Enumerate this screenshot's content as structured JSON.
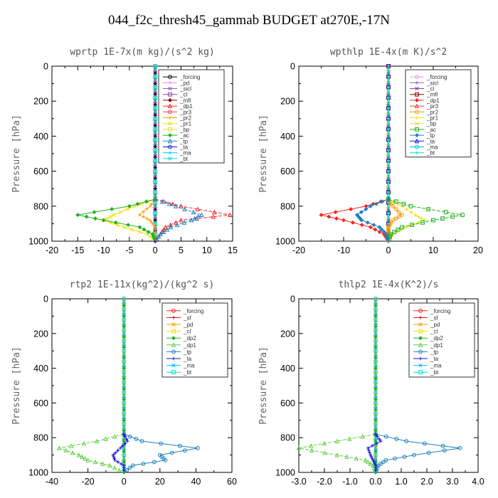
{
  "page_title": "044_f2c_thresh45_gammab  BUDGET at270E,-17N",
  "chart_data": [
    {
      "type": "line",
      "title": "wprtp   1E-7x(m kg)/(s^2 kg)",
      "ylabel": "Pressure [hPa]",
      "xlim": [
        -20,
        15
      ],
      "ylim": [
        1000,
        0
      ],
      "x_ticks": [
        "-20",
        "-15",
        "-10",
        "-5",
        "0",
        "5",
        "10",
        "15"
      ],
      "y_ticks": [
        "0",
        "200",
        "400",
        "600",
        "800",
        "1000"
      ],
      "legend_position": "top-right",
      "pressure": [
        760,
        800,
        850,
        880,
        920,
        960,
        1000
      ],
      "series": [
        {
          "name": "_forcing",
          "color": "#000000",
          "values": [
            0,
            0,
            0,
            0,
            0,
            0,
            0
          ]
        },
        {
          "name": "_pd",
          "color": "#e090e0",
          "values": [
            0,
            0,
            0,
            0,
            0,
            0,
            0
          ]
        },
        {
          "name": "_sicl",
          "color": "#8a60c0",
          "values": [
            0,
            0,
            0,
            0,
            0,
            0,
            0
          ]
        },
        {
          "name": "_cl",
          "color": "#9040a0",
          "values": [
            0,
            0,
            0,
            0,
            0,
            0,
            0
          ]
        },
        {
          "name": "_mfl",
          "color": "#800000",
          "values": [
            0,
            0,
            0,
            0,
            0,
            0,
            0
          ]
        },
        {
          "name": "_dp1",
          "color": "#ff2020",
          "values": [
            0,
            5,
            14.5,
            5,
            2,
            1,
            0
          ]
        },
        {
          "name": "_pr3",
          "color": "#e04040",
          "values": [
            0,
            0,
            0,
            0,
            0,
            0,
            0
          ]
        },
        {
          "name": "_pr2",
          "color": "#ff9900",
          "values": [
            0,
            -1,
            -3,
            -1,
            0,
            0,
            0
          ]
        },
        {
          "name": "_pr1",
          "color": "#f0e000",
          "values": [
            0,
            -4,
            -8,
            -10,
            -6,
            -1.5,
            0
          ]
        },
        {
          "name": "_bp",
          "color": "#e0e040",
          "values": [
            0,
            0,
            0,
            0,
            0,
            0,
            0
          ]
        },
        {
          "name": "_ac",
          "color": "#20b020",
          "values": [
            0,
            -5,
            -15,
            -10,
            -3,
            -0.5,
            0
          ]
        },
        {
          "name": "_tp",
          "color": "#2080c0",
          "values": [
            0,
            4,
            9,
            7,
            3,
            1,
            0
          ]
        },
        {
          "name": "_ta",
          "color": "#1010e0",
          "values": [
            0,
            0,
            0,
            0,
            0,
            0,
            0
          ]
        },
        {
          "name": "_ma",
          "color": "#00c0e0",
          "values": [
            0,
            0,
            0,
            0,
            0,
            0,
            0
          ]
        },
        {
          "name": "_bt",
          "color": "#00e0e0",
          "values": [
            0,
            0,
            0,
            0,
            0,
            0,
            0
          ]
        }
      ]
    },
    {
      "type": "line",
      "title": "wpthlp   1E-4x(m K)/s^2",
      "ylabel": "Pressure [hPa]",
      "xlim": [
        -20,
        20
      ],
      "ylim": [
        1000,
        0
      ],
      "x_ticks": [
        "-20",
        "-10",
        "0",
        "10",
        "20"
      ],
      "y_ticks": [
        "0",
        "200",
        "400",
        "600",
        "800",
        "1000"
      ],
      "legend_position": "top-right",
      "pressure": [
        760,
        800,
        850,
        880,
        920,
        960,
        1000
      ],
      "series": [
        {
          "name": "_forcing",
          "color": "#e0a0e0",
          "values": [
            0,
            0,
            0,
            0,
            0,
            0,
            0
          ]
        },
        {
          "name": "_sicl",
          "color": "#8a60c0",
          "values": [
            0,
            0,
            0,
            0,
            0,
            0,
            0
          ]
        },
        {
          "name": "_cl",
          "color": "#9040a0",
          "values": [
            0,
            0,
            0,
            0,
            0,
            0,
            0
          ]
        },
        {
          "name": "_mfl",
          "color": "#800000",
          "values": [
            0,
            0,
            0,
            0,
            0,
            0,
            0
          ]
        },
        {
          "name": "_dp1",
          "color": "#ff2020",
          "values": [
            0,
            -5,
            -15,
            -10,
            -4,
            -1,
            0
          ]
        },
        {
          "name": "_pr3",
          "color": "#e04040",
          "values": [
            0,
            0,
            0,
            0,
            0,
            0,
            0
          ]
        },
        {
          "name": "_pr2",
          "color": "#ff9900",
          "values": [
            0,
            1,
            3,
            1,
            0,
            0,
            0
          ]
        },
        {
          "name": "_pr1",
          "color": "#f0e000",
          "values": [
            0,
            3,
            6,
            8,
            4,
            1,
            0
          ]
        },
        {
          "name": "_bp",
          "color": "#e0e040",
          "values": [
            0,
            0,
            0,
            0,
            0,
            0,
            0
          ]
        },
        {
          "name": "_ac",
          "color": "#20b020",
          "values": [
            0,
            5,
            16.5,
            10,
            3,
            0.5,
            0
          ]
        },
        {
          "name": "_tp",
          "color": "#2080c0",
          "values": [
            0,
            -4,
            -7,
            -6,
            -2,
            -0.5,
            0
          ]
        },
        {
          "name": "_ta",
          "color": "#1010e0",
          "values": [
            0,
            0,
            0,
            0,
            0,
            0,
            0
          ]
        },
        {
          "name": "_ma",
          "color": "#00c0e0",
          "values": [
            0,
            0,
            0,
            0,
            0,
            0,
            0
          ]
        },
        {
          "name": "_bt",
          "color": "#00e0e0",
          "values": [
            0,
            0,
            0,
            0,
            0,
            0,
            0
          ]
        }
      ]
    },
    {
      "type": "line",
      "title": "rtp2   1E-11x(kg^2)/(kg^2 s)",
      "ylabel": "Pressure [hPa]",
      "xlim": [
        -40,
        60
      ],
      "ylim": [
        1000,
        0
      ],
      "x_ticks": [
        "-40",
        "-20",
        "0",
        "20",
        "40",
        "60"
      ],
      "y_ticks": [
        "0",
        "200",
        "400",
        "600",
        "800",
        "1000"
      ],
      "legend_position": "top-right",
      "pressure": [
        780,
        820,
        860,
        900,
        930,
        960,
        1000
      ],
      "series": [
        {
          "name": "_forcing",
          "color": "#ff2020",
          "values": [
            0,
            0,
            0,
            0,
            0,
            0,
            0
          ]
        },
        {
          "name": "_sf",
          "color": "#cc1010",
          "values": [
            0,
            0,
            0,
            0,
            0,
            0,
            0
          ]
        },
        {
          "name": "_pd",
          "color": "#ff9900",
          "values": [
            0,
            0,
            0,
            0,
            0,
            0,
            0
          ]
        },
        {
          "name": "_cl",
          "color": "#f0e000",
          "values": [
            0,
            0,
            0,
            0,
            0,
            0,
            0
          ]
        },
        {
          "name": "_dp2",
          "color": "#20b020",
          "values": [
            0,
            0,
            0,
            0,
            0,
            0,
            0
          ]
        },
        {
          "name": "_dp1",
          "color": "#60d040",
          "values": [
            0,
            -15,
            -36,
            -25,
            -20,
            -8,
            0
          ]
        },
        {
          "name": "_tp",
          "color": "#2080c0",
          "values": [
            0,
            10,
            41,
            20,
            23,
            5,
            0
          ]
        },
        {
          "name": "_ta",
          "color": "#1010e0",
          "values": [
            0,
            2,
            -2,
            -6,
            -5,
            0,
            0
          ]
        },
        {
          "name": "_ma",
          "color": "#00c0e0",
          "values": [
            0,
            0,
            0,
            0,
            0,
            0,
            0
          ]
        },
        {
          "name": "_bt",
          "color": "#00e0e0",
          "values": [
            0,
            0,
            0,
            0,
            0,
            0,
            0
          ]
        }
      ]
    },
    {
      "type": "line",
      "title": "thlp2   1E-4x(K^2)/s",
      "ylabel": "Pressure [hPa]",
      "xlim": [
        -3.0,
        4.0
      ],
      "ylim": [
        1000,
        0
      ],
      "x_ticks": [
        "-3.0",
        "-2.0",
        "-1.0",
        "0.0",
        "1.0",
        "2.0",
        "3.0",
        "4.0"
      ],
      "y_ticks": [
        "0",
        "200",
        "400",
        "600",
        "800",
        "1000"
      ],
      "legend_position": "top-right",
      "pressure": [
        780,
        820,
        860,
        900,
        930,
        960,
        1000
      ],
      "series": [
        {
          "name": "_forcing",
          "color": "#ff2020",
          "values": [
            0,
            0,
            0,
            0,
            0,
            0,
            0
          ]
        },
        {
          "name": "_sf",
          "color": "#cc1010",
          "values": [
            0,
            0,
            0,
            0,
            0,
            0,
            0
          ]
        },
        {
          "name": "_pd",
          "color": "#ff9900",
          "values": [
            0,
            0,
            0,
            0,
            0,
            0,
            0
          ]
        },
        {
          "name": "_cl",
          "color": "#f0e000",
          "values": [
            0,
            0,
            0,
            0,
            0,
            0,
            0
          ]
        },
        {
          "name": "_dp2",
          "color": "#20b020",
          "values": [
            0,
            0,
            0,
            0,
            0,
            0,
            0
          ]
        },
        {
          "name": "_dp1",
          "color": "#60d040",
          "values": [
            0,
            -1.5,
            -3.0,
            -1.5,
            -0.4,
            -0.1,
            0
          ]
        },
        {
          "name": "_tp",
          "color": "#2080c0",
          "values": [
            0,
            1.2,
            3.3,
            1.5,
            0.4,
            0.1,
            0
          ]
        },
        {
          "name": "_ta",
          "color": "#1010e0",
          "values": [
            0,
            0.2,
            -0.3,
            -0.2,
            -0.1,
            0,
            0
          ]
        },
        {
          "name": "_ma",
          "color": "#00c0e0",
          "values": [
            0,
            0,
            0,
            0,
            0,
            0,
            0
          ]
        },
        {
          "name": "_bt",
          "color": "#00e0e0",
          "values": [
            0,
            0,
            0,
            0,
            0,
            0,
            0
          ]
        }
      ]
    }
  ]
}
